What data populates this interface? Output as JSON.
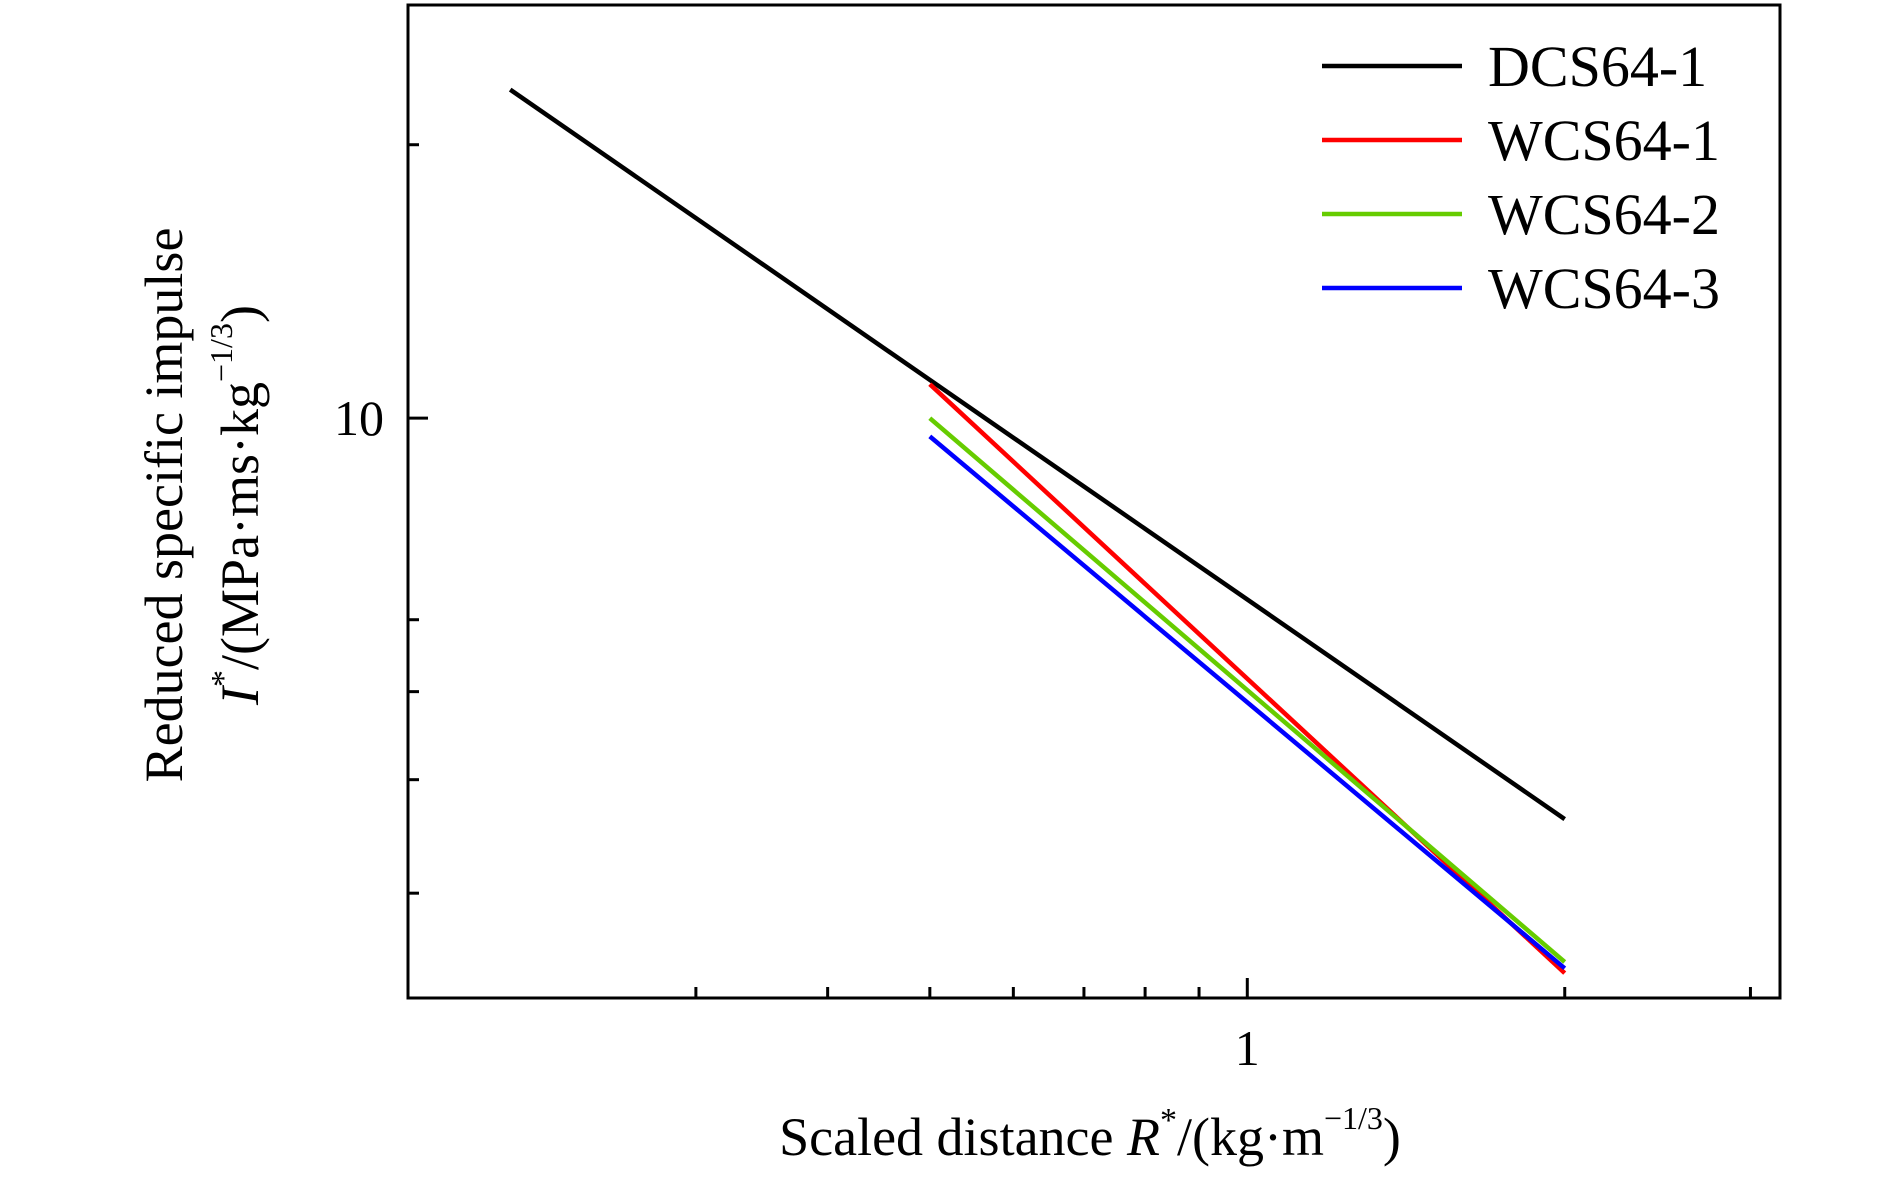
{
  "chart_data": {
    "type": "line",
    "x_scale": "log",
    "y_scale": "log",
    "xlim": [
      0.16,
      3.2
    ],
    "ylim": [
      2.3,
      28.5
    ],
    "grid": false,
    "legend_position": "top-right",
    "x_ticks": [
      {
        "value": 1,
        "label": "1"
      }
    ],
    "y_ticks": [
      {
        "value": 10,
        "label": "10"
      }
    ],
    "x_minor_ticks": [
      0.3,
      0.4,
      0.5,
      0.6,
      0.7,
      0.8,
      0.9,
      2,
      3
    ],
    "y_minor_ticks": [
      3,
      4,
      5,
      6,
      20
    ],
    "xlabel": {
      "text": "Scaled distance ",
      "var": "R",
      "sup": "*",
      "unit": "/(kg·m",
      "unit_sup": "−1/3",
      "close": ")"
    },
    "ylabel": {
      "line1": "Reduced specific impulse",
      "var": "I",
      "sup": "*",
      "unit": "/(MPa·ms·kg",
      "unit_sup": "−1/3",
      "close": ")"
    },
    "series": [
      {
        "name": "DCS64-1",
        "color": "#000000",
        "x": [
          0.2,
          2.0
        ],
        "y": [
          23.0,
          3.62
        ]
      },
      {
        "name": "WCS64-1",
        "color": "#ff0000",
        "x": [
          0.5,
          2.0
        ],
        "y": [
          10.9,
          2.45
        ]
      },
      {
        "name": "WCS64-2",
        "color": "#66cc00",
        "x": [
          0.5,
          2.0
        ],
        "y": [
          10.0,
          2.52
        ]
      },
      {
        "name": "WCS64-3",
        "color": "#0000ff",
        "x": [
          0.5,
          2.0
        ],
        "y": [
          9.55,
          2.48
        ]
      }
    ]
  }
}
